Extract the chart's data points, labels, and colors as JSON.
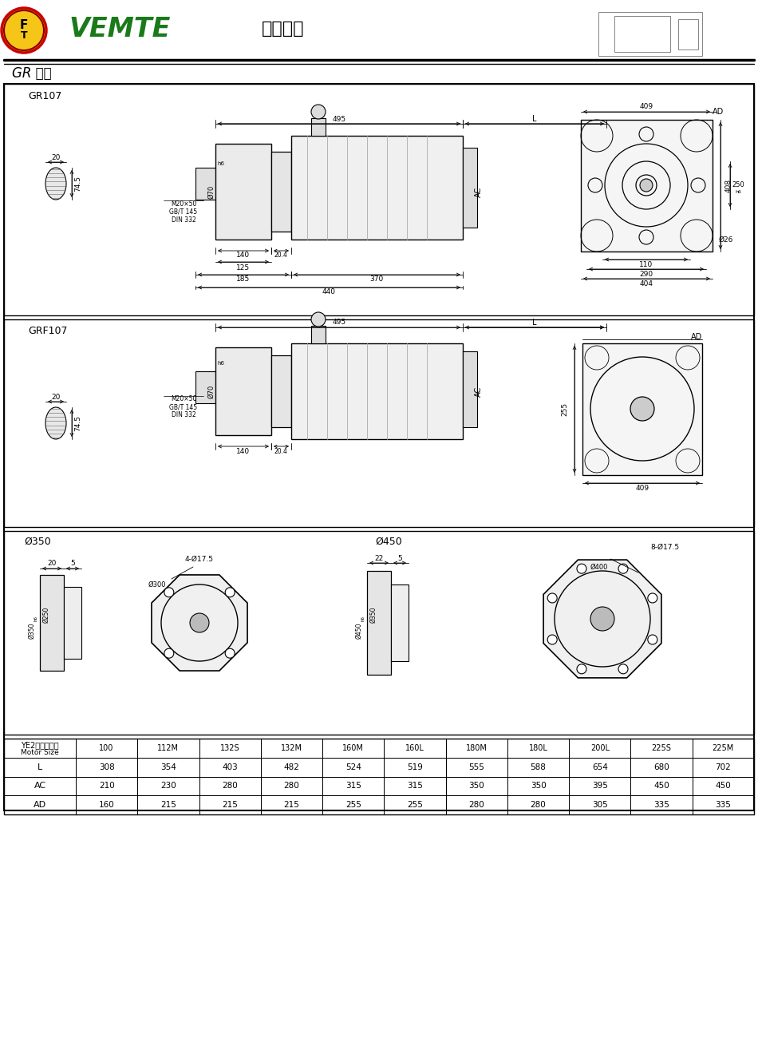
{
  "bg_color": "#ffffff",
  "title": "减速电机",
  "brand": "VEMTE",
  "series_label": "GR 系列",
  "section1": "GR107",
  "section2": "GRF107",
  "sec3_label1": "Ø350",
  "sec3_label2": "Ø450",
  "table_header1": "YE2电机机座号",
  "table_header2": "Motor Size",
  "cols": [
    "100",
    "112M",
    "132S",
    "132M",
    "160M",
    "160L",
    "180M",
    "180L",
    "200L",
    "225S",
    "225M"
  ],
  "row_L": [
    308,
    354,
    403,
    482,
    524,
    519,
    555,
    588,
    654,
    680,
    702
  ],
  "row_AC": [
    210,
    230,
    280,
    280,
    315,
    315,
    350,
    350,
    395,
    450,
    450
  ],
  "row_AD": [
    160,
    215,
    215,
    215,
    255,
    255,
    280,
    280,
    305,
    335,
    335
  ]
}
